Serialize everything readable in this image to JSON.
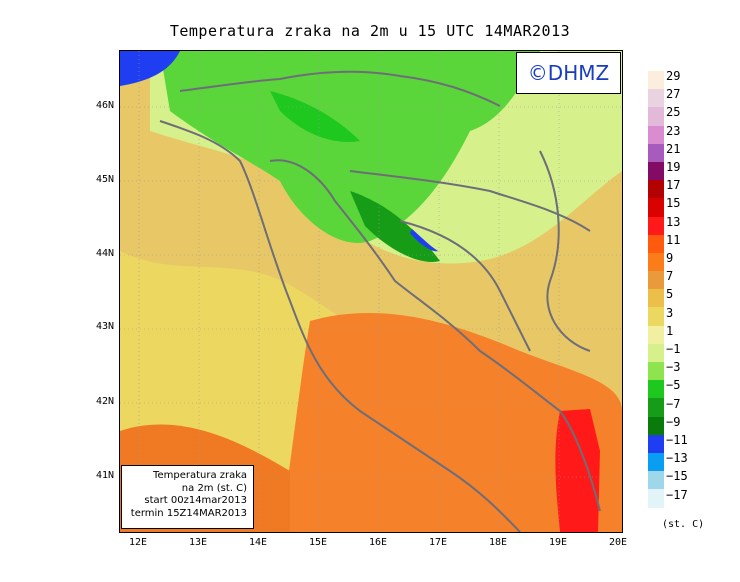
{
  "title": "Temperatura zraka na 2m u 15 UTC 14MAR2013",
  "logo": "©DHMZ",
  "infobox": {
    "line1": "Temperatura zraka",
    "line2": "na 2m (st. C)",
    "line3": "start 00z14mar2013",
    "line4": "termin 15Z14MAR2013"
  },
  "axes": {
    "lat_ticks": [
      "46N",
      "45N",
      "44N",
      "43N",
      "42N",
      "41N"
    ],
    "lon_ticks": [
      "12E",
      "13E",
      "14E",
      "15E",
      "16E",
      "17E",
      "18E",
      "19E",
      "20E"
    ]
  },
  "legend": {
    "unit": "(st. C)",
    "labels": [
      "29",
      "27",
      "25",
      "23",
      "21",
      "19",
      "17",
      "15",
      "13",
      "11",
      "9",
      "7",
      "5",
      "3",
      "1",
      "−1",
      "−3",
      "−5",
      "−7",
      "−9",
      "−11",
      "−13",
      "−15",
      "−17"
    ],
    "colors": [
      "#fbeedd",
      "#e9d3e0",
      "#e2b9d9",
      "#d98cd0",
      "#a65bbd",
      "#830b65",
      "#b30000",
      "#d90000",
      "#ff1919",
      "#ff5a0d",
      "#fb7d1a",
      "#e99a3a",
      "#ecbe4a",
      "#ecd860",
      "#f0f0a0",
      "#d6f08c",
      "#8ee44e",
      "#1fc81f",
      "#169c16",
      "#0a7a0a",
      "#1f3ef2",
      "#0a9ef2",
      "#9ed6ea",
      "#e2f4f8"
    ]
  }
}
